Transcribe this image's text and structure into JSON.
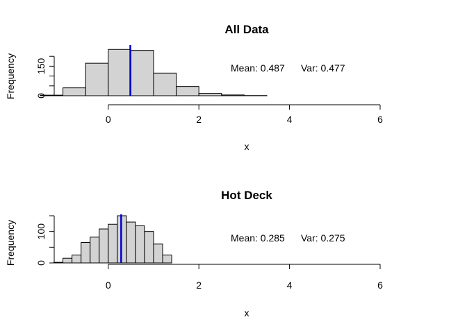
{
  "chart_data": [
    {
      "type": "bar",
      "title": "All Data",
      "xlabel": "x",
      "ylabel": "Frequency",
      "xlim": [
        -1.3,
        6
      ],
      "xticks": [
        0,
        2,
        4,
        6
      ],
      "ylim": [
        0,
        250
      ],
      "yticks": [
        0,
        50,
        100,
        150,
        200
      ],
      "ytick_labels": [
        "0",
        "",
        "",
        "150",
        ""
      ],
      "bin_edges": [
        -1.5,
        -1,
        -0.5,
        0,
        0.5,
        1,
        1.5,
        2,
        2.5,
        3,
        3.5
      ],
      "values": [
        3,
        40,
        165,
        235,
        230,
        115,
        47,
        12,
        4,
        1
      ],
      "mean_line": 0.487,
      "mean_text": "Mean: 0.487",
      "var_text": "Var: 0.477",
      "colors": {
        "bar_fill": "#d3d3d3",
        "bar_stroke": "#000000",
        "mean_line": "#0000cd"
      }
    },
    {
      "type": "bar",
      "title": "Hot Deck",
      "xlabel": "x",
      "ylabel": "Frequency",
      "xlim": [
        -1.3,
        6
      ],
      "xticks": [
        0,
        2,
        4,
        6
      ],
      "ylim": [
        0,
        150
      ],
      "yticks": [
        0,
        50,
        100,
        150
      ],
      "ytick_labels": [
        "0",
        "",
        "100",
        ""
      ],
      "bin_edges": [
        -1.2,
        -1.0,
        -0.8,
        -0.6,
        -0.4,
        -0.2,
        0,
        0.2,
        0.4,
        0.6,
        0.8,
        1.0,
        1.2,
        1.4
      ],
      "values": [
        2,
        15,
        25,
        65,
        82,
        108,
        123,
        150,
        130,
        118,
        100,
        60,
        25
      ],
      "mean_line": 0.285,
      "mean_text": "Mean: 0.285",
      "var_text": "Var: 0.275",
      "colors": {
        "bar_fill": "#d3d3d3",
        "bar_stroke": "#000000",
        "mean_line": "#0000cd"
      }
    }
  ]
}
